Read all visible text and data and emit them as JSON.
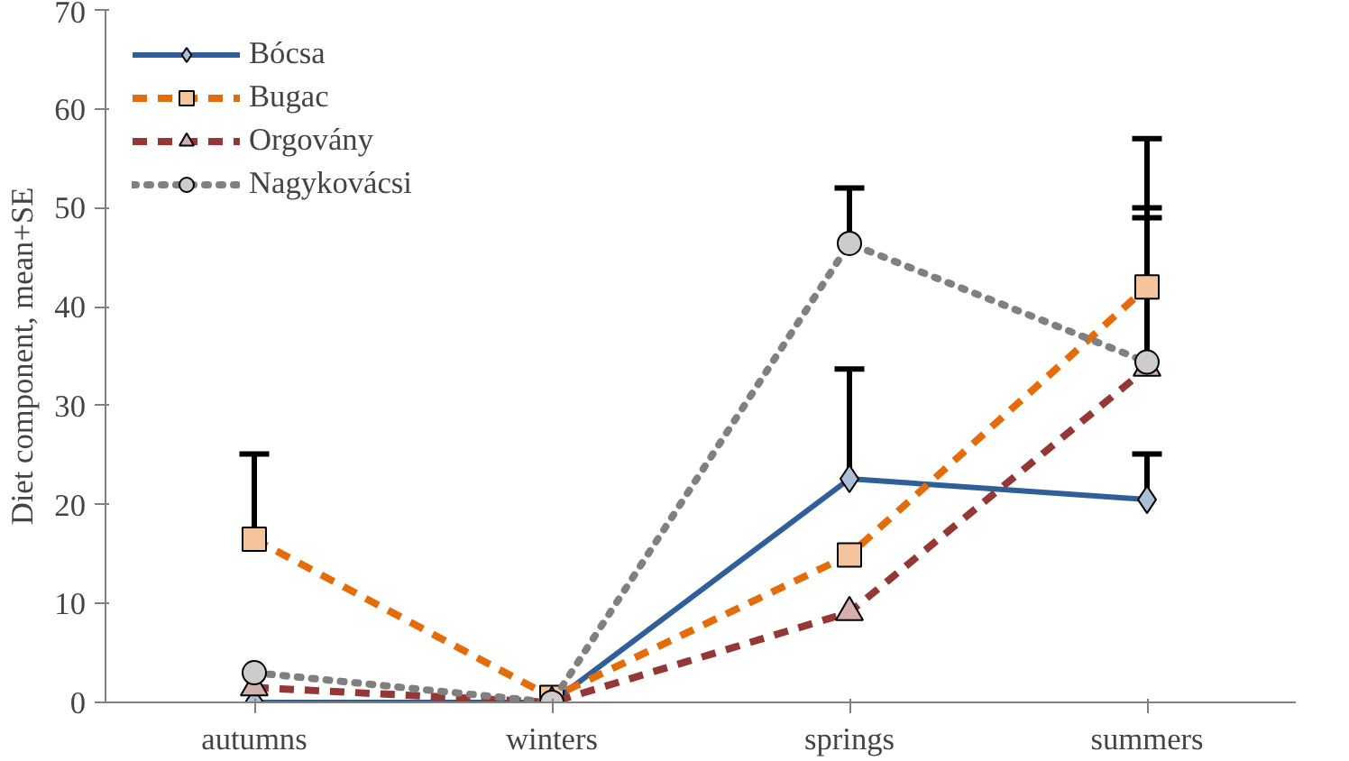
{
  "chart_data": {
    "type": "line",
    "ylabel": "Diet component, mean+SE",
    "categories": [
      "autumns",
      "winters",
      "springs",
      "summers"
    ],
    "ylim": [
      0,
      70
    ],
    "yticks": [
      0,
      10,
      20,
      30,
      40,
      50,
      60,
      70
    ],
    "grid": false,
    "legend": "top left",
    "series": [
      {
        "name": "Bócsa",
        "color": "#2e5f99",
        "marker": "diamond",
        "line_style": "solid",
        "values": [
          0,
          0,
          22.6,
          20.5
        ],
        "errors": [
          null,
          null,
          [
            22.6,
            33.7
          ],
          [
            20.5,
            25.1
          ]
        ]
      },
      {
        "name": "Bugac",
        "color": "#e46c0a",
        "marker": "square",
        "line_style": "dashed",
        "values": [
          16.5,
          0.5,
          14.9,
          42
        ],
        "errors": [
          [
            16.5,
            25.1
          ],
          null,
          null,
          [
            42,
            57
          ]
        ]
      },
      {
        "name": "Orgovány",
        "color": "#953735",
        "marker": "triangle",
        "line_style": "dashed",
        "values": [
          1.5,
          0,
          9.1,
          33.8
        ],
        "errors": [
          null,
          null,
          null,
          [
            33.8,
            49
          ]
        ]
      },
      {
        "name": "Nagykovácsi",
        "color": "#808080",
        "marker": "circle",
        "line_style": "dotted",
        "values": [
          3,
          0,
          46.4,
          34.4
        ],
        "errors": [
          null,
          null,
          [
            46.4,
            52
          ],
          [
            34.4,
            50
          ]
        ]
      }
    ]
  }
}
